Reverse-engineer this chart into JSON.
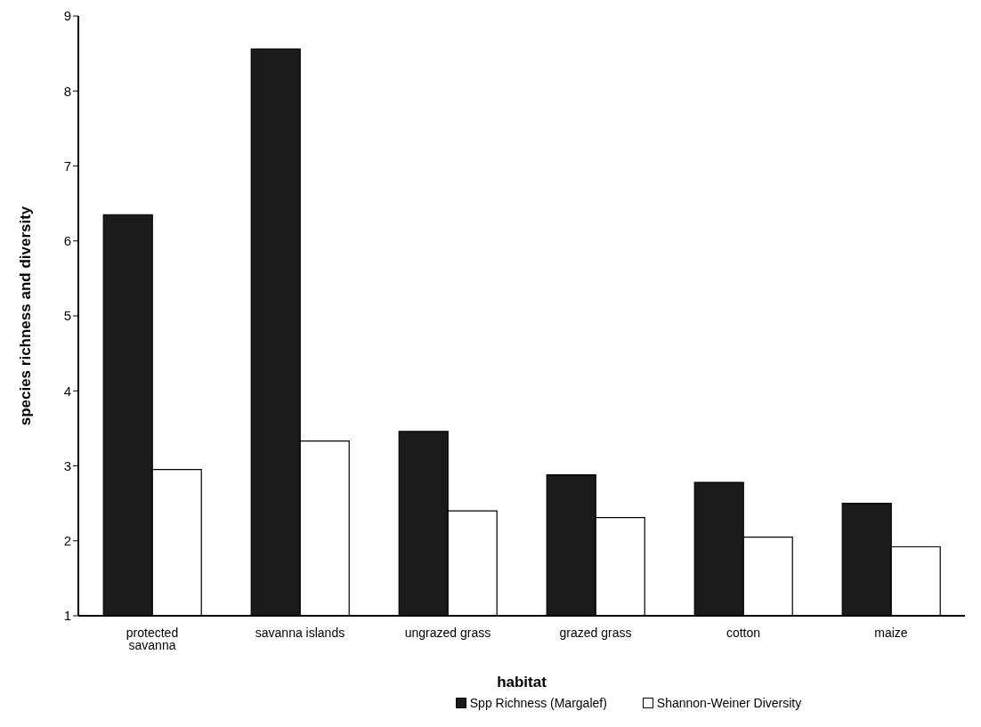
{
  "chart_data": {
    "type": "bar",
    "xlabel": "habitat",
    "ylabel": "species richness and diversity",
    "categories": [
      "protected savanna",
      "savanna islands",
      "ungrazed grass",
      "grazed grass",
      "cotton",
      "maize"
    ],
    "series": [
      {
        "name": "Spp Richness (Margalef)",
        "color": "#1a1a1a",
        "values": [
          6.35,
          8.56,
          3.46,
          2.88,
          2.78,
          2.5
        ]
      },
      {
        "name": "Shannon-Weiner Diversity",
        "color": "#ffffff",
        "values": [
          2.95,
          3.33,
          2.4,
          2.31,
          2.05,
          1.92
        ]
      }
    ],
    "ylim": [
      1,
      9
    ],
    "yticks": [
      1,
      2,
      3,
      4,
      5,
      6,
      7,
      8,
      9
    ],
    "grid": false,
    "legend": "bottom"
  }
}
